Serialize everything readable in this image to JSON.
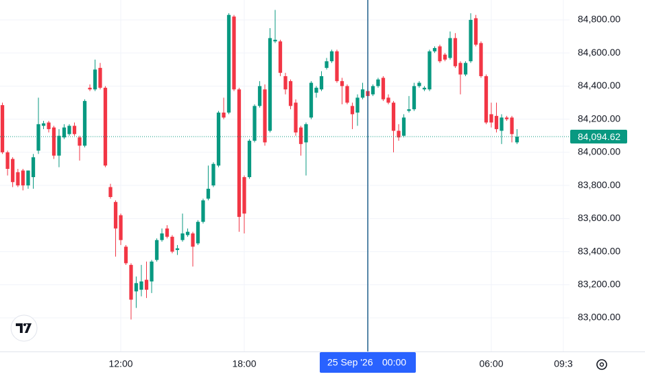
{
  "chart_data": {
    "type": "candlestick",
    "x": [
      6.25,
      6.5,
      6.75,
      7,
      7.25,
      7.5,
      7.75,
      8,
      8.25,
      8.5,
      8.75,
      9,
      9.25,
      9.5,
      9.75,
      10,
      10.25,
      10.5,
      10.75,
      11,
      11.25,
      11.5,
      11.75,
      12,
      12.25,
      12.5,
      12.75,
      13,
      13.25,
      13.5,
      13.75,
      14,
      14.25,
      14.5,
      14.75,
      15,
      15.25,
      15.5,
      15.75,
      16,
      16.25,
      16.5,
      16.75,
      17,
      17.25,
      17.5,
      17.75,
      18,
      18.25,
      18.5,
      18.75,
      19,
      19.25,
      19.5,
      19.75,
      20,
      20.25,
      20.5,
      20.75,
      21,
      21.25,
      21.5,
      21.75,
      22,
      22.25,
      22.5,
      22.75,
      23,
      23.25,
      23.5,
      23.75,
      24,
      24.25,
      24.5,
      24.75,
      25,
      25.25,
      25.5,
      25.75,
      26,
      26.25,
      26.5,
      26.75,
      27,
      27.25,
      27.5,
      27.75,
      28,
      28.25,
      28.5,
      28.75,
      29,
      29.25,
      29.5,
      29.75,
      30,
      30.25,
      30.5,
      30.75,
      31,
      31.25
    ],
    "open": [
      84285,
      84000,
      83960,
      83880,
      83890,
      83800,
      83850,
      84010,
      84160,
      84180,
      84150,
      83980,
      84090,
      84110,
      84160,
      84090,
      84040,
      84390,
      84380,
      84510,
      84390,
      83790,
      83700,
      83620,
      83430,
      83320,
      83160,
      83170,
      83230,
      83220,
      83350,
      83470,
      83540,
      83490,
      83410,
      83470,
      83500,
      83510,
      83450,
      83580,
      83720,
      83800,
      83920,
      84240,
      84240,
      84820,
      84380,
      83850,
      83850,
      84070,
      84280,
      84380,
      84130,
      84670,
      84670,
      84460,
      84430,
      84300,
      84150,
      84060,
      84210,
      84360,
      84380,
      84510,
      84550,
      84610,
      84430,
      84400,
      84280,
      84240,
      84330,
      84370,
      84350,
      84400,
      84450,
      84330,
      84300,
      84130,
      84100,
      84250,
      84260,
      84400,
      84380,
      84380,
      84610,
      84640,
      84590,
      84570,
      84690,
      84540,
      84470,
      84550,
      84810,
      84660,
      84460,
      84230,
      84220,
      84130,
      84210,
      84210,
      84060
    ],
    "high": [
      84300,
      84010,
      83970,
      83900,
      83900,
      83890,
      83990,
      84330,
      84190,
      84190,
      84160,
      84140,
      84170,
      84170,
      84180,
      84100,
      84320,
      84410,
      84560,
      84540,
      84400,
      83810,
      83710,
      83630,
      83440,
      83330,
      83250,
      83320,
      83340,
      83350,
      83480,
      83540,
      83560,
      83500,
      83440,
      83630,
      83540,
      83520,
      83590,
      83720,
      83920,
      83940,
      84250,
      84330,
      84840,
      84830,
      84390,
      83860,
      84080,
      84290,
      84430,
      84410,
      84750,
      84860,
      84680,
      84480,
      84440,
      84320,
      84160,
      84180,
      84430,
      84400,
      84490,
      84570,
      84620,
      84620,
      84450,
      84410,
      84300,
      84350,
      84420,
      84420,
      84410,
      84450,
      84460,
      84350,
      84310,
      84170,
      84230,
      84340,
      84420,
      84430,
      84400,
      84620,
      84640,
      84650,
      84600,
      84730,
      84720,
      84550,
      84550,
      84840,
      84830,
      84670,
      84470,
      84300,
      84300,
      84230,
      84220,
      84220,
      84140
    ],
    "low": [
      83990,
      83860,
      83790,
      83790,
      83770,
      83780,
      83780,
      83990,
      84140,
      84120,
      83960,
      83910,
      84080,
      84100,
      84100,
      83950,
      84030,
      84370,
      84370,
      84380,
      83910,
      83720,
      83370,
      83440,
      83320,
      82990,
      83060,
      83130,
      83120,
      83150,
      83340,
      83460,
      83480,
      83390,
      83380,
      83460,
      83490,
      83310,
      83440,
      83570,
      83710,
      83790,
      83910,
      84200,
      84230,
      84370,
      83520,
      83510,
      83840,
      84060,
      84270,
      84040,
      84120,
      84660,
      84460,
      84350,
      84260,
      84100,
      83980,
      83860,
      84200,
      84330,
      84370,
      84500,
      84540,
      84420,
      84290,
      84290,
      84140,
      84160,
      84320,
      84320,
      84340,
      84390,
      84310,
      84290,
      84000,
      84070,
      84090,
      84240,
      84250,
      84390,
      84370,
      84370,
      84600,
      84540,
      84550,
      84560,
      84510,
      84350,
      84460,
      84540,
      84640,
      84450,
      84170,
      84150,
      84120,
      84050,
      84190,
      84060,
      84050
    ],
    "close": [
      84000,
      83900,
      83820,
      83800,
      83800,
      83890,
      83970,
      84170,
      84175,
      84140,
      83980,
      84100,
      84150,
      84160,
      84110,
      84040,
      84310,
      84380,
      84500,
      84390,
      83920,
      83730,
      83540,
      83470,
      83330,
      83110,
      83210,
      83220,
      83170,
      83340,
      83470,
      83510,
      83490,
      83400,
      83420,
      83510,
      83520,
      83430,
      83580,
      83710,
      83780,
      83930,
      84240,
      84210,
      84830,
      84380,
      83610,
      83630,
      84070,
      84280,
      84400,
      84060,
      84690,
      84680,
      84480,
      84380,
      84280,
      84120,
      84050,
      84170,
      84420,
      84390,
      84460,
      84550,
      84610,
      84430,
      84400,
      84300,
      84230,
      84330,
      84380,
      84340,
      84400,
      84440,
      84320,
      84300,
      84130,
      84090,
      84210,
      84260,
      84400,
      84420,
      84390,
      84610,
      84630,
      84550,
      84560,
      84690,
      84520,
      84470,
      84540,
      84800,
      84650,
      84460,
      84180,
      84180,
      84140,
      84210,
      84200,
      84110,
      84094.62
    ],
    "up_color": "#089981",
    "down_color": "#f23645",
    "xlim": [
      6.133,
      33.8
    ],
    "xticks": [
      {
        "value": 12,
        "label": "12:00"
      },
      {
        "value": 18,
        "label": "18:00"
      },
      {
        "value": 30,
        "label": "06:00"
      },
      {
        "value": 33.5,
        "label": "09:3"
      }
    ],
    "ylim": [
      82797,
      84920
    ],
    "yticks": [
      {
        "value": 83000,
        "label": "83,000.00"
      },
      {
        "value": 83200,
        "label": "83,200.00"
      },
      {
        "value": 83400,
        "label": "83,400.00"
      },
      {
        "value": 83600,
        "label": "83,600.00"
      },
      {
        "value": 83800,
        "label": "83,800.00"
      },
      {
        "value": 84000,
        "label": "84,000.00"
      },
      {
        "value": 84200,
        "label": "84,200.00"
      },
      {
        "value": 84400,
        "label": "84,400.00"
      },
      {
        "value": 84600,
        "label": "84,600.00"
      },
      {
        "value": 84800,
        "label": "84,800.00"
      }
    ],
    "grid": true,
    "last_price": {
      "value": 84094.62,
      "label": "84,094.62"
    },
    "crosshair": {
      "value": 24,
      "date": "25 Sep '26",
      "time": "00:00"
    }
  }
}
